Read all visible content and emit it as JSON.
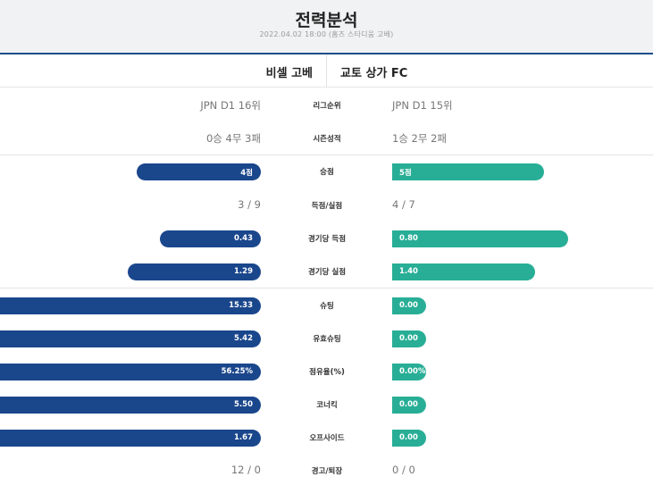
{
  "header": {
    "title": "전력분석",
    "subtitle": "2022.04.02 18:00 (홈즈 스타디움 고베)"
  },
  "teams": {
    "home": "비셀 고베",
    "away": "교토 상가 FC"
  },
  "rows": [
    {
      "label": "리그순위",
      "home": "JPN D1 16위",
      "away": "JPN D1 15위"
    },
    {
      "label": "시즌성적",
      "home": "0승 4무 3패",
      "away": "1승 2무 2패"
    },
    {
      "label": "승점",
      "home": "4점",
      "away": "5점",
      "home_value": 4,
      "away_value": 5
    },
    {
      "label": "득점/실점",
      "home": "3 / 9",
      "away": "4 / 7"
    },
    {
      "label": "경기당 득점",
      "home": "0.43",
      "away": "0.80",
      "home_value": 0.43,
      "away_value": 0.8
    },
    {
      "label": "경기당 실점",
      "home": "1.29",
      "away": "1.40",
      "home_value": 1.29,
      "away_value": 1.4
    },
    {
      "label": "슈팅",
      "home": "15.33",
      "away": "0.00",
      "home_value": 15.33,
      "away_value": 0.0
    },
    {
      "label": "유효슈팅",
      "home": "5.42",
      "away": "0.00",
      "home_value": 5.42,
      "away_value": 0.0
    },
    {
      "label": "점유율(%)",
      "home": "56.25%",
      "away": "0.00%",
      "home_value": 56.25,
      "away_value": 0.0
    },
    {
      "label": "코너킥",
      "home": "5.50",
      "away": "0.00",
      "home_value": 5.5,
      "away_value": 0.0
    },
    {
      "label": "오프사이드",
      "home": "1.67",
      "away": "0.00",
      "home_value": 1.67,
      "away_value": 0.0
    },
    {
      "label": "경고/퇴장",
      "home": "12 / 0",
      "away": "0 / 0"
    }
  ],
  "colors": {
    "home_bar": "#1a468c",
    "away_bar": "#28ae96",
    "header_bg": "#f1f2f4",
    "accent_line": "#1e4e8a"
  }
}
